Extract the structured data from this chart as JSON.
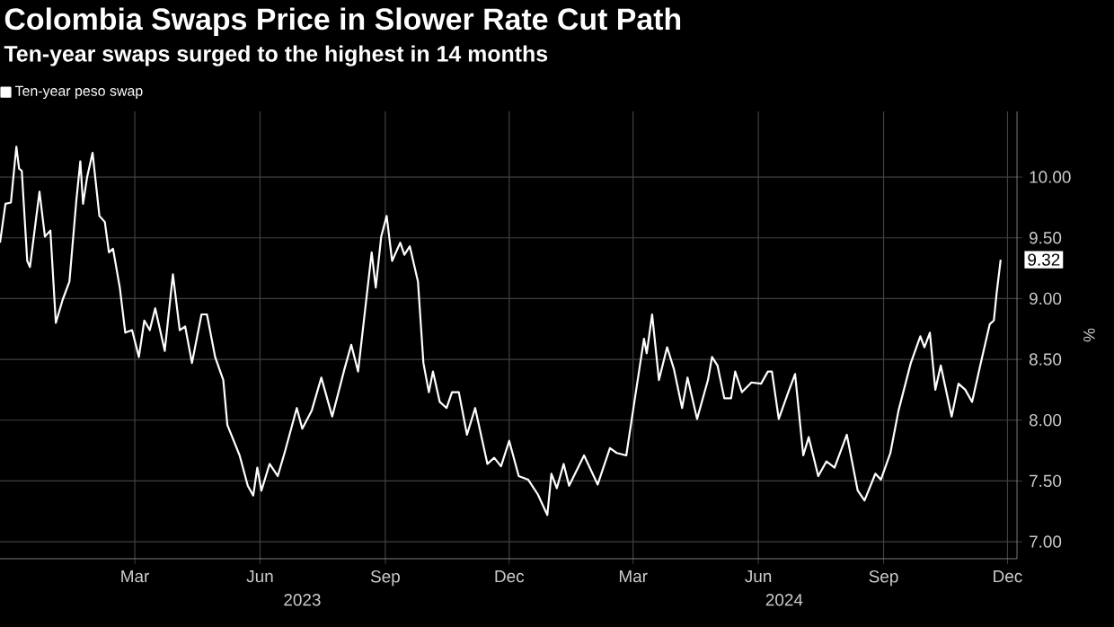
{
  "chart_data": {
    "type": "line",
    "title": "Colombia Swaps Price in Slower Rate Cut Path",
    "subtitle": "Ten-year swaps surged to the highest in 14 months",
    "ylabel": "%",
    "annotations": [
      "2023",
      "2024"
    ],
    "xlim": [
      "2022-11-22",
      "2024-12-08"
    ],
    "xticks": [
      {
        "value": "2023-03-01",
        "label": "Mar"
      },
      {
        "value": "2023-06-01",
        "label": "Jun"
      },
      {
        "value": "2023-09-01",
        "label": "Sep"
      },
      {
        "value": "2023-12-01",
        "label": "Dec"
      },
      {
        "value": "2024-03-01",
        "label": "Mar"
      },
      {
        "value": "2024-06-01",
        "label": "Jun"
      },
      {
        "value": "2024-09-01",
        "label": "Sep"
      },
      {
        "value": "2024-12-01",
        "label": "Dec"
      }
    ],
    "ylim": [
      6.86,
      10.54
    ],
    "yticks": [
      {
        "value": 7,
        "label": "7.00"
      },
      {
        "value": 7.5,
        "label": "7.50"
      },
      {
        "value": 8,
        "label": "8.00"
      },
      {
        "value": 8.5,
        "label": "8.50"
      },
      {
        "value": 9,
        "label": "9.00"
      },
      {
        "value": 9.5,
        "label": "9.50"
      },
      {
        "value": 10,
        "label": "10.00"
      }
    ],
    "grid": true,
    "legend": "top left",
    "x": [
      "2022-11-22",
      "2022-11-26",
      "2022-11-30",
      "2022-12-04",
      "2022-12-06",
      "2022-12-08",
      "2022-12-12",
      "2022-12-14",
      "2022-12-21",
      "2022-12-25",
      "2022-12-29",
      "2023-01-02",
      "2023-01-07",
      "2023-01-12",
      "2023-01-17",
      "2023-01-20",
      "2023-01-22",
      "2023-01-25",
      "2023-01-29",
      "2023-02-03",
      "2023-02-07",
      "2023-02-10",
      "2023-02-13",
      "2023-02-18",
      "2023-02-22",
      "2023-02-27",
      "2023-03-04",
      "2023-03-08",
      "2023-03-12",
      "2023-03-16",
      "2023-03-23",
      "2023-03-29",
      "2023-04-03",
      "2023-04-07",
      "2023-04-12",
      "2023-04-19",
      "2023-04-23",
      "2023-04-29",
      "2023-05-05",
      "2023-05-08",
      "2023-05-17",
      "2023-05-23",
      "2023-05-27",
      "2023-05-30",
      "2023-06-02",
      "2023-06-08",
      "2023-06-14",
      "2023-06-19",
      "2023-06-28",
      "2023-07-02",
      "2023-07-09",
      "2023-07-16",
      "2023-07-24",
      "2023-08-02",
      "2023-08-07",
      "2023-08-12",
      "2023-08-22",
      "2023-08-25",
      "2023-08-29",
      "2023-09-02",
      "2023-09-06",
      "2023-09-12",
      "2023-09-15",
      "2023-09-19",
      "2023-09-25",
      "2023-09-29",
      "2023-10-03",
      "2023-10-06",
      "2023-10-11",
      "2023-10-16",
      "2023-10-20",
      "2023-10-25",
      "2023-10-31",
      "2023-11-06",
      "2023-11-15",
      "2023-11-20",
      "2023-11-25",
      "2023-12-01",
      "2023-12-08",
      "2023-12-15",
      "2023-12-22",
      "2023-12-29",
      "2024-01-01",
      "2024-01-05",
      "2024-01-10",
      "2024-01-14",
      "2024-01-25",
      "2024-02-04",
      "2024-02-13",
      "2024-02-18",
      "2024-02-25",
      "2024-03-01",
      "2024-03-09",
      "2024-03-11",
      "2024-03-15",
      "2024-03-20",
      "2024-03-26",
      "2024-03-31",
      "2024-04-06",
      "2024-04-10",
      "2024-04-17",
      "2024-04-25",
      "2024-04-28",
      "2024-05-02",
      "2024-05-07",
      "2024-05-12",
      "2024-05-15",
      "2024-05-20",
      "2024-05-27",
      "2024-06-03",
      "2024-06-08",
      "2024-06-11",
      "2024-06-16",
      "2024-06-23",
      "2024-06-28",
      "2024-07-04",
      "2024-07-08",
      "2024-07-15",
      "2024-07-21",
      "2024-07-27",
      "2024-08-05",
      "2024-08-13",
      "2024-08-18",
      "2024-08-26",
      "2024-08-30",
      "2024-09-06",
      "2024-09-12",
      "2024-09-21",
      "2024-09-28",
      "2024-10-01",
      "2024-10-05",
      "2024-10-09",
      "2024-10-13",
      "2024-10-21",
      "2024-10-26",
      "2024-10-31",
      "2024-11-05",
      "2024-11-11",
      "2024-11-18",
      "2024-11-21",
      "2024-11-23",
      "2024-11-26"
    ],
    "series": [
      {
        "name": "Ten-year peso swap",
        "color": "#ffffff",
        "values": [
          9.46,
          9.78,
          9.79,
          10.25,
          10.07,
          10.05,
          9.31,
          9.26,
          9.88,
          9.51,
          9.56,
          8.8,
          8.99,
          9.14,
          9.8,
          10.13,
          9.78,
          10.0,
          10.2,
          9.68,
          9.63,
          9.38,
          9.41,
          9.09,
          8.72,
          8.74,
          8.52,
          8.82,
          8.74,
          8.92,
          8.57,
          9.2,
          8.74,
          8.77,
          8.47,
          8.87,
          8.87,
          8.52,
          8.33,
          7.96,
          7.71,
          7.46,
          7.38,
          7.61,
          7.42,
          7.64,
          7.54,
          7.73,
          8.1,
          7.93,
          8.08,
          8.35,
          8.03,
          8.42,
          8.62,
          8.4,
          9.38,
          9.09,
          9.51,
          9.68,
          9.31,
          9.46,
          9.36,
          9.43,
          9.14,
          8.47,
          8.23,
          8.4,
          8.15,
          8.1,
          8.23,
          8.23,
          7.88,
          8.1,
          7.64,
          7.69,
          7.62,
          7.83,
          7.54,
          7.51,
          7.39,
          7.22,
          7.56,
          7.44,
          7.64,
          7.46,
          7.71,
          7.47,
          7.77,
          7.73,
          7.71,
          8.08,
          8.67,
          8.55,
          8.87,
          8.33,
          8.6,
          8.42,
          8.1,
          8.35,
          8.01,
          8.33,
          8.52,
          8.45,
          8.18,
          8.18,
          8.4,
          8.23,
          8.31,
          8.3,
          8.4,
          8.4,
          8.01,
          8.23,
          8.38,
          7.71,
          7.86,
          7.54,
          7.66,
          7.61,
          7.88,
          7.42,
          7.34,
          7.56,
          7.51,
          7.73,
          8.08,
          8.47,
          8.69,
          8.6,
          8.72,
          8.25,
          8.45,
          8.03,
          8.3,
          8.25,
          8.15,
          8.45,
          8.79,
          8.82,
          9.04,
          9.32
        ],
        "value_labels": [
          null,
          null,
          null,
          null,
          null,
          null,
          null,
          null,
          null,
          null,
          null,
          null,
          null,
          null,
          null,
          null,
          null,
          null,
          null,
          null,
          null,
          null,
          null,
          null,
          null,
          null,
          null,
          null,
          null,
          null,
          null,
          null,
          null,
          null,
          null,
          null,
          null,
          null,
          null,
          null,
          null,
          null,
          null,
          null,
          null,
          null,
          null,
          null,
          null,
          null,
          null,
          null,
          null,
          null,
          null,
          null,
          null,
          null,
          null,
          null,
          null,
          null,
          null,
          null,
          null,
          null,
          null,
          null,
          null,
          null,
          null,
          null,
          null,
          null,
          null,
          null,
          null,
          null,
          null,
          null,
          null,
          null,
          null,
          null,
          null,
          null,
          null,
          null,
          null,
          null,
          null,
          null,
          null,
          null,
          null,
          null,
          null,
          null,
          null,
          null,
          null,
          null,
          null,
          null,
          null,
          null,
          null,
          null,
          null,
          null,
          null,
          null,
          null,
          null,
          null,
          null,
          null,
          null,
          null,
          null,
          null,
          null,
          null,
          null,
          null,
          null,
          null,
          null,
          null,
          null,
          null,
          null,
          null,
          null,
          null,
          null,
          null,
          null,
          null,
          null,
          null,
          "9.32"
        ]
      }
    ]
  }
}
